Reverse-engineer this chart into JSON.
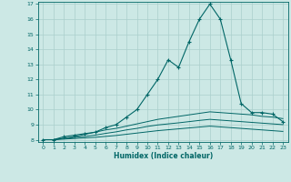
{
  "xlabel": "Humidex (Indice chaleur)",
  "bg_color": "#cce8e5",
  "line_color": "#006666",
  "grid_color": "#aacfcc",
  "x_values": [
    0,
    1,
    2,
    3,
    4,
    5,
    6,
    7,
    8,
    9,
    10,
    11,
    12,
    13,
    14,
    15,
    16,
    17,
    18,
    19,
    20,
    21,
    22,
    23
  ],
  "series": [
    [
      8.0,
      8.0,
      8.2,
      8.3,
      8.4,
      8.5,
      8.8,
      9.0,
      9.5,
      10.0,
      11.0,
      12.0,
      13.3,
      12.8,
      14.5,
      16.0,
      17.0,
      16.0,
      13.3,
      10.4,
      9.8,
      9.8,
      9.7,
      9.2
    ],
    [
      8.0,
      8.0,
      8.1,
      8.2,
      8.35,
      8.5,
      8.65,
      8.75,
      8.9,
      9.05,
      9.2,
      9.35,
      9.45,
      9.55,
      9.65,
      9.75,
      9.85,
      9.8,
      9.75,
      9.7,
      9.65,
      9.55,
      9.5,
      9.4
    ],
    [
      8.0,
      8.0,
      8.08,
      8.15,
      8.22,
      8.3,
      8.42,
      8.52,
      8.65,
      8.75,
      8.88,
      8.98,
      9.05,
      9.12,
      9.2,
      9.28,
      9.35,
      9.3,
      9.25,
      9.2,
      9.15,
      9.1,
      9.05,
      9.0
    ],
    [
      8.0,
      8.0,
      8.04,
      8.08,
      8.12,
      8.16,
      8.22,
      8.28,
      8.36,
      8.44,
      8.52,
      8.6,
      8.66,
      8.72,
      8.78,
      8.84,
      8.9,
      8.85,
      8.8,
      8.75,
      8.7,
      8.65,
      8.6,
      8.55
    ]
  ],
  "has_markers": [
    true,
    false,
    false,
    false
  ],
  "ylim_min": 8,
  "ylim_max": 17,
  "xlim_min": 0,
  "xlim_max": 23
}
